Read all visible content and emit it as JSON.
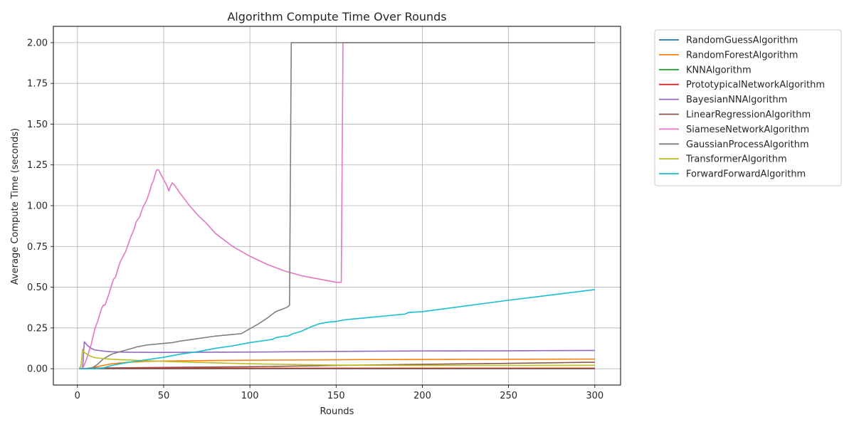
{
  "chart_data": {
    "type": "line",
    "title": "Algorithm Compute Time Over Rounds",
    "xlabel": "Rounds",
    "ylabel": "Average Compute Time (seconds)",
    "xlim": [
      -13.95,
      314.95
    ],
    "ylim": [
      -0.1,
      2.1
    ],
    "xticks": [
      0,
      50,
      100,
      150,
      200,
      250,
      300
    ],
    "yticks": [
      0.0,
      0.25,
      0.5,
      0.75,
      1.0,
      1.25,
      1.5,
      1.75,
      2.0
    ],
    "ytick_labels": [
      "0.00",
      "0.25",
      "0.50",
      "0.75",
      "1.00",
      "1.25",
      "1.50",
      "1.75",
      "2.00"
    ],
    "grid": true,
    "legend_position": "outside-top-right",
    "series": [
      {
        "name": "RandomGuessAlgorithm",
        "color": "#1f77b4",
        "x": [
          1,
          5,
          10,
          50,
          100,
          150,
          200,
          250,
          300
        ],
        "y": [
          0.0,
          0.0,
          0.0,
          0.0,
          0.0,
          0.0,
          0.0,
          0.0,
          0.0
        ]
      },
      {
        "name": "RandomForestAlgorithm",
        "color": "#ff7f0e",
        "x": [
          1,
          5,
          10,
          15,
          20,
          30,
          40,
          50,
          75,
          100,
          150,
          200,
          250,
          300
        ],
        "y": [
          0.0,
          0.0,
          0.01,
          0.02,
          0.03,
          0.04,
          0.045,
          0.047,
          0.05,
          0.052,
          0.055,
          0.057,
          0.058,
          0.059
        ]
      },
      {
        "name": "KNNAlgorithm",
        "color": "#2ca02c",
        "x": [
          1,
          5,
          10,
          50,
          100,
          150,
          200,
          250,
          300
        ],
        "y": [
          0.0,
          0.001,
          0.002,
          0.003,
          0.003,
          0.003,
          0.003,
          0.003,
          0.003
        ]
      },
      {
        "name": "PrototypicalNetworkAlgorithm",
        "color": "#d62728",
        "x": [
          1,
          5,
          10,
          50,
          100,
          150,
          200,
          250,
          300
        ],
        "y": [
          0.0,
          0.001,
          0.002,
          0.002,
          0.002,
          0.002,
          0.002,
          0.002,
          0.002
        ]
      },
      {
        "name": "BayesianNNAlgorithm",
        "color": "#9467bd",
        "x": [
          1,
          3,
          4,
          6,
          8,
          10,
          15,
          20,
          30,
          50,
          100,
          150,
          200,
          250,
          300
        ],
        "y": [
          0.0,
          0.0,
          0.165,
          0.14,
          0.125,
          0.115,
          0.108,
          0.104,
          0.101,
          0.1,
          0.102,
          0.106,
          0.109,
          0.11,
          0.112
        ]
      },
      {
        "name": "LinearRegressionAlgorithm",
        "color": "#8c564b",
        "x": [
          1,
          5,
          10,
          50,
          100,
          150,
          200,
          250,
          300
        ],
        "y": [
          0.0,
          0.002,
          0.004,
          0.008,
          0.012,
          0.02,
          0.027,
          0.033,
          0.04
        ]
      },
      {
        "name": "SiameseNetworkAlgorithm",
        "color": "#e377c2",
        "x": [
          1,
          3,
          5,
          8,
          10,
          12,
          14,
          15,
          16,
          18,
          20,
          21,
          22,
          24,
          25,
          26,
          28,
          30,
          31,
          33,
          34,
          36,
          37,
          38,
          40,
          41,
          42,
          43,
          44,
          45,
          46,
          47,
          48,
          50,
          52,
          53,
          54,
          55,
          56,
          58,
          60,
          65,
          70,
          75,
          80,
          90,
          100,
          110,
          120,
          130,
          140,
          150,
          153,
          154,
          160,
          200,
          250,
          300
        ],
        "y": [
          0.0,
          0.0,
          0.05,
          0.15,
          0.24,
          0.3,
          0.37,
          0.39,
          0.39,
          0.45,
          0.52,
          0.55,
          0.56,
          0.63,
          0.66,
          0.68,
          0.72,
          0.78,
          0.81,
          0.86,
          0.9,
          0.93,
          0.96,
          0.99,
          1.03,
          1.06,
          1.09,
          1.13,
          1.15,
          1.19,
          1.22,
          1.22,
          1.2,
          1.16,
          1.12,
          1.09,
          1.12,
          1.14,
          1.13,
          1.1,
          1.07,
          1.0,
          0.94,
          0.89,
          0.83,
          0.75,
          0.69,
          0.64,
          0.6,
          0.57,
          0.55,
          0.53,
          0.53,
          2.0,
          2.0,
          2.0,
          2.0,
          2.0
        ]
      },
      {
        "name": "GaussianProcessAlgorithm",
        "color": "#7f7f7f",
        "x": [
          1,
          8,
          12,
          15,
          20,
          25,
          30,
          35,
          40,
          45,
          50,
          55,
          60,
          70,
          80,
          90,
          95,
          100,
          105,
          110,
          113,
          115,
          120,
          122,
          123,
          124,
          130,
          150,
          200,
          250,
          300
        ],
        "y": [
          0.0,
          0.0,
          0.03,
          0.06,
          0.09,
          0.105,
          0.12,
          0.135,
          0.145,
          0.15,
          0.155,
          0.16,
          0.17,
          0.185,
          0.2,
          0.21,
          0.215,
          0.245,
          0.275,
          0.31,
          0.335,
          0.35,
          0.37,
          0.38,
          0.39,
          2.0,
          2.0,
          2.0,
          2.0,
          2.0,
          2.0
        ]
      },
      {
        "name": "TransformerAlgorithm",
        "color": "#bcbd22",
        "x": [
          1,
          2,
          3,
          4,
          6,
          8,
          10,
          15,
          20,
          30,
          50,
          75,
          100,
          150,
          200,
          250,
          300
        ],
        "y": [
          0.01,
          0.01,
          0.12,
          0.1,
          0.085,
          0.075,
          0.068,
          0.062,
          0.058,
          0.053,
          0.045,
          0.037,
          0.03,
          0.022,
          0.02,
          0.02,
          0.021
        ]
      },
      {
        "name": "ForwardForwardAlgorithm",
        "color": "#17becf",
        "x": [
          1,
          10,
          15,
          20,
          25,
          30,
          40,
          50,
          60,
          70,
          80,
          90,
          100,
          110,
          113,
          115,
          120,
          122,
          125,
          130,
          135,
          140,
          145,
          150,
          155,
          160,
          170,
          180,
          190,
          192,
          200,
          250,
          300
        ],
        "y": [
          0.0,
          0.0,
          0.005,
          0.02,
          0.03,
          0.04,
          0.055,
          0.07,
          0.09,
          0.105,
          0.125,
          0.14,
          0.16,
          0.175,
          0.18,
          0.19,
          0.2,
          0.2,
          0.215,
          0.23,
          0.255,
          0.275,
          0.285,
          0.29,
          0.3,
          0.305,
          0.315,
          0.325,
          0.335,
          0.345,
          0.35,
          0.42,
          0.485
        ]
      }
    ]
  }
}
